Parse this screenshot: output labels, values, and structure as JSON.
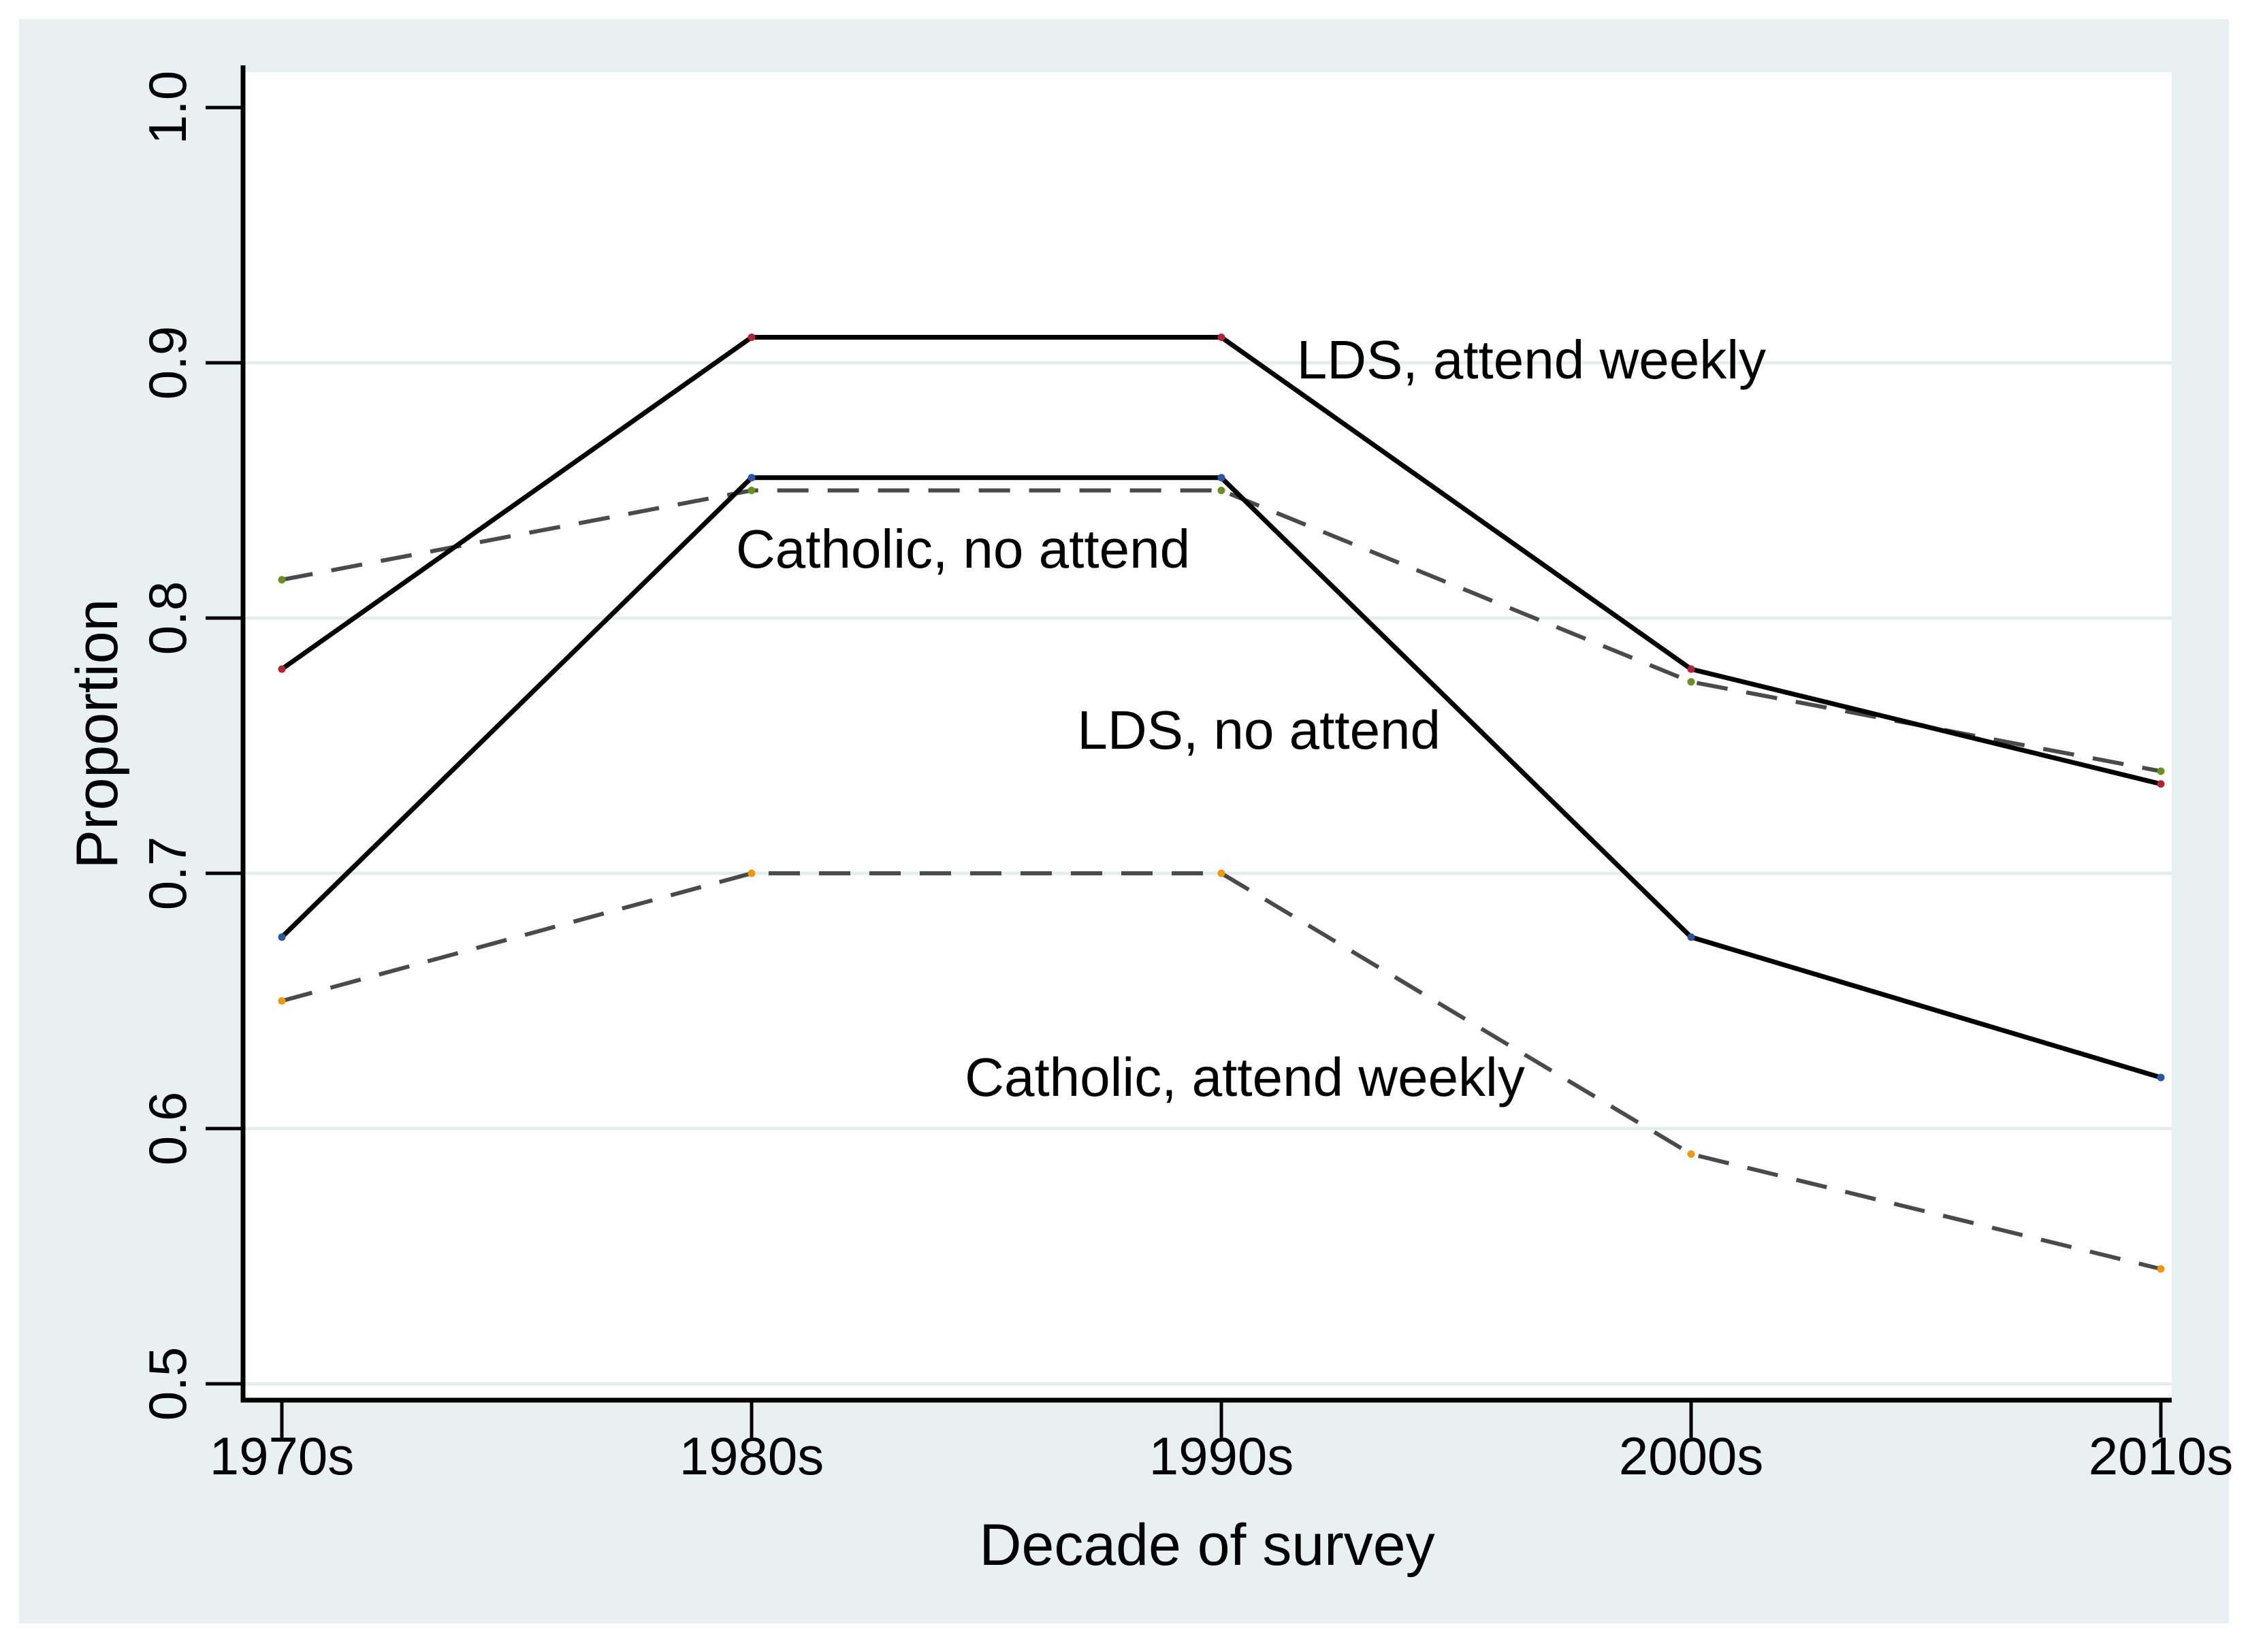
{
  "figure": {
    "background": "#ffffff",
    "panel_background": "#e9f0f2",
    "plot_background": "#ffffff",
    "gridline_color": "#e3edee",
    "axis_color": "#000000",
    "dashed_line_color": "#4a4a4a",
    "solid_line_color": "#000000"
  },
  "chart_data": {
    "type": "line",
    "title": "",
    "xlabel": "Decade of survey",
    "ylabel": "Proportion",
    "categories": [
      "1970s",
      "1980s",
      "1990s",
      "2000s",
      "2010s"
    ],
    "y_tick_labels": [
      "1.0",
      "0.9",
      "0.8",
      "0.7",
      "0.6",
      "0.5"
    ],
    "y_ticks": [
      1.0,
      0.9,
      0.8,
      0.7,
      0.6,
      0.5
    ],
    "grid_values": [
      0.9,
      0.8,
      0.7,
      0.6,
      0.5
    ],
    "ylim": [
      0.5,
      1.0
    ],
    "grid": "horizontal only",
    "legend_position": "none (direct labels on plot)",
    "series": [
      {
        "name": "LDS, attend weekly",
        "style": "solid",
        "line_color": "#000000",
        "marker_color": "#b02437",
        "values": [
          0.78,
          0.91,
          0.91,
          0.78,
          0.735
        ]
      },
      {
        "name": "Catholic, no attend",
        "style": "dashed",
        "line_color": "#4a4a4a",
        "marker_color": "#6b8e23",
        "values": [
          0.815,
          0.85,
          0.85,
          0.775,
          0.74
        ]
      },
      {
        "name": "LDS, no attend",
        "style": "solid",
        "line_color": "#000000",
        "marker_color": "#2b55a0",
        "values": [
          0.675,
          0.855,
          0.855,
          0.675,
          0.62
        ]
      },
      {
        "name": "Catholic, attend weekly",
        "style": "dashed",
        "line_color": "#4a4a4a",
        "marker_color": "#f0960f",
        "values": [
          0.65,
          0.7,
          0.7,
          0.59,
          0.545
        ]
      }
    ],
    "annotations": [
      {
        "text": "LDS, attend weekly",
        "x": 2.66,
        "y": 0.901
      },
      {
        "text": "Catholic, no attend",
        "x": 1.45,
        "y": 0.827
      },
      {
        "text": "LDS, no attend",
        "x": 2.08,
        "y": 0.756
      },
      {
        "text": "Catholic, attend weekly",
        "x": 2.05,
        "y": 0.62
      }
    ]
  }
}
